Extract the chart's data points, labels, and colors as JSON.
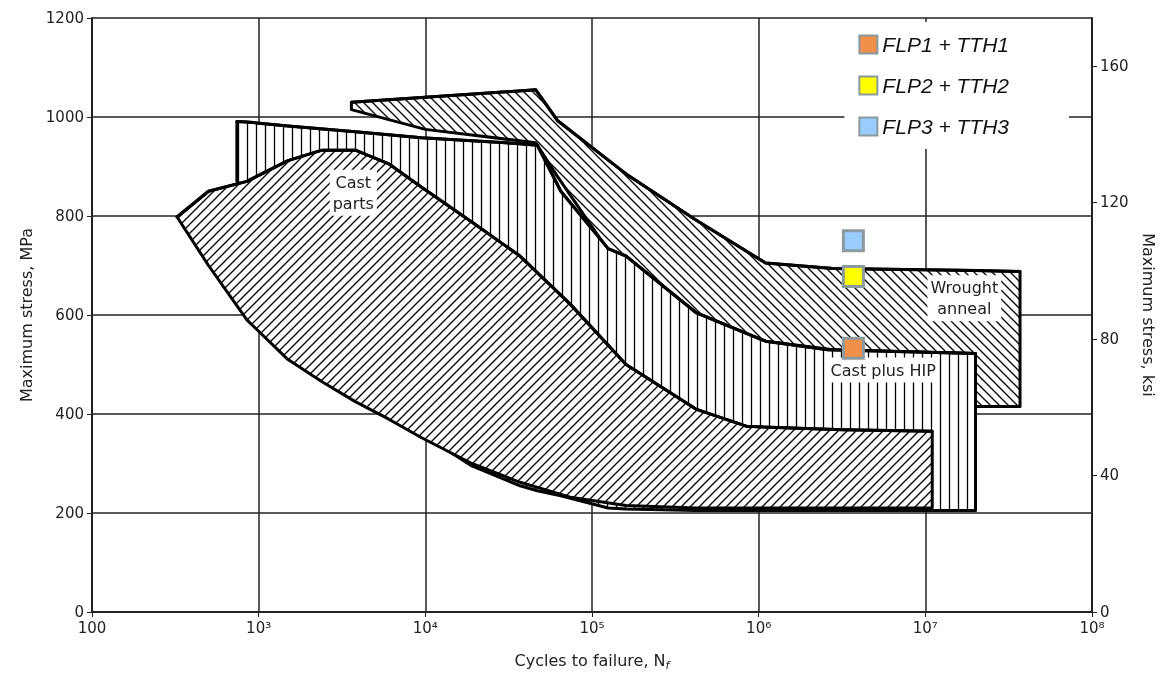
{
  "chart_data": {
    "type": "line",
    "xlabel": "Cycles to failure, N$_{f}$",
    "ylabel": "Maximum stress, MPa",
    "y2label": "Maximum stress, ksi",
    "log": "x",
    "xlim": [
      100,
      100000000
    ],
    "xticks": [
      {
        "value": 100,
        "label": "100"
      },
      {
        "value": 1000,
        "label": "10³"
      },
      {
        "value": 10000,
        "label": "10⁴"
      },
      {
        "value": 100000,
        "label": "10⁵"
      },
      {
        "value": 1000000,
        "label": "10⁶"
      },
      {
        "value": 10000000,
        "label": "10⁷"
      },
      {
        "value": 100000000,
        "label": "10⁸"
      }
    ],
    "ylim": [
      0,
      1200
    ],
    "yticks": [
      0,
      200,
      400,
      600,
      800,
      1000,
      1200
    ],
    "y2lim": [
      0,
      174
    ],
    "y2ticks": [
      0,
      40,
      80,
      120,
      160
    ],
    "grid": true,
    "legend": "top right",
    "series": [
      {
        "name": "Wrought\nanneal",
        "color": "#000000",
        "x": [
          3600,
          10000,
          46000,
          62000,
          123000,
          160000,
          420000,
          1100000,
          2800000,
          20000000,
          20000000,
          37000000
        ],
        "values": [
          1030,
          1040,
          1055,
          993,
          915,
          885,
          792,
          705,
          694,
          690,
          690,
          688
        ],
        "upper": [
          1030,
          1040,
          1055,
          993,
          915,
          885,
          792,
          705,
          694,
          690,
          690,
          688
        ],
        "lower": [
          1015,
          975,
          948,
          880,
          734,
          719,
          605,
          547,
          530,
          522,
          415,
          415
        ]
      },
      {
        "name": "Cast plus HIP",
        "color": "#000000",
        "x": [
          740,
          850,
          1500,
          3800,
          9500,
          19000,
          37000,
          47000,
          65000,
          125000,
          160000,
          420000,
          1100000,
          2600000,
          20000000
        ],
        "values": [
          991,
          990,
          982,
          970,
          958,
          952,
          946,
          943,
          850,
          734,
          719,
          605,
          547,
          530,
          522
        ],
        "upper": [
          991,
          990,
          982,
          970,
          958,
          952,
          946,
          943,
          850,
          734,
          719,
          605,
          547,
          530,
          522
        ],
        "lower": [
          870,
          850,
          620,
          480,
          360,
          295,
          255,
          245,
          235,
          210,
          208,
          205,
          205,
          205,
          205
        ]
      },
      {
        "name": "Cast\nparts",
        "color": "#000000",
        "x": [
          324,
          500,
          850,
          1500,
          2400,
          3800,
          6000,
          9500,
          19000,
          37000,
          74000,
          160000,
          420000,
          850000,
          3200000,
          11000000
        ],
        "values": [
          798,
          850,
          870,
          912,
          933,
          933,
          906,
          858,
          788,
          719,
          622,
          500,
          410,
          375,
          368,
          365
        ],
        "upper": [
          798,
          850,
          870,
          912,
          933,
          933,
          906,
          858,
          788,
          719,
          622,
          500,
          410,
          375,
          368,
          365
        ],
        "lower": [
          798,
          700,
          590,
          510,
          465,
          425,
          390,
          352,
          300,
          262,
          232,
          215,
          210,
          210,
          210,
          210
        ]
      },
      {
        "type": "scatter",
        "name": "FLP1 + TTH1",
        "color": "#f0904a",
        "marker": "square",
        "x": [
          3700000
        ],
        "values": [
          533
        ]
      },
      {
        "type": "scatter",
        "name": "FLP2 + TTH2",
        "color": "#ffff00",
        "marker": "square",
        "x": [
          3700000
        ],
        "values": [
          678
        ]
      },
      {
        "type": "scatter",
        "name": "FLP3 + TTH3",
        "color": "#99ccff",
        "marker": "square",
        "x": [
          3700000
        ],
        "values": [
          750
        ]
      }
    ]
  }
}
